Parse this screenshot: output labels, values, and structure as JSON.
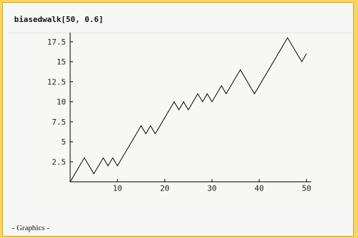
{
  "notebook": {
    "input_code": "biasedwalk[50, 0.6]",
    "output_text": "- Graphics -"
  },
  "chart_data": {
    "type": "line",
    "title": "",
    "xlabel": "",
    "ylabel": "",
    "xlim": [
      0,
      51
    ],
    "ylim": [
      -1,
      19
    ],
    "x_ticks": [
      10,
      20,
      30,
      40,
      50
    ],
    "y_ticks": [
      2.5,
      5,
      7.5,
      10,
      12.5,
      15,
      17.5
    ],
    "x_tick_labels": [
      "10",
      "20",
      "30",
      "40",
      "50"
    ],
    "y_tick_labels": [
      "2.5",
      "5",
      "7.5",
      "10",
      "12.5",
      "15",
      "17.5"
    ],
    "grid": false,
    "line_color": "#000000",
    "series": [
      {
        "x": [
          0,
          1,
          2,
          3,
          4,
          5,
          6,
          7,
          8,
          9,
          10,
          11,
          12,
          13,
          14,
          15,
          16,
          17,
          18,
          19,
          20,
          21,
          22,
          23,
          24,
          25,
          26,
          27,
          28,
          29,
          30,
          31,
          32,
          33,
          34,
          35,
          36,
          37,
          38,
          39,
          40,
          41,
          42,
          43,
          44,
          45,
          46,
          47,
          48,
          49,
          50
        ],
        "values": [
          0,
          1,
          2,
          3,
          2,
          1,
          2,
          3,
          2,
          3,
          2,
          3,
          4,
          5,
          6,
          7,
          6,
          7,
          6,
          7,
          8,
          9,
          10,
          9,
          10,
          9,
          10,
          11,
          10,
          11,
          10,
          11,
          12,
          11,
          12,
          13,
          14,
          13,
          12,
          11,
          12,
          13,
          14,
          15,
          16,
          17,
          18,
          17,
          16,
          15,
          16
        ]
      }
    ]
  }
}
